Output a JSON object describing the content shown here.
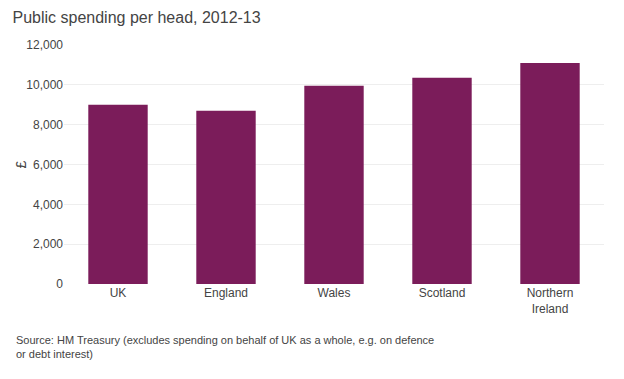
{
  "chart_data": {
    "type": "bar",
    "title": "Public spending per head, 2012-13",
    "ylabel": "£",
    "categories": [
      "UK",
      "England",
      "Wales",
      "Scotland",
      "Northern\nIreland"
    ],
    "values": [
      9000,
      8700,
      9950,
      10350,
      11100
    ],
    "color": "#7B1C5A",
    "ylim": [
      0,
      12000
    ],
    "yticks": [
      0,
      {
        "value": 2000,
        "label": "2,000"
      },
      {
        "value": 4000,
        "label": "4,000"
      },
      {
        "value": 6000,
        "label": "6,000"
      },
      {
        "value": 8000,
        "label": "8,000"
      },
      {
        "value": 10000,
        "label": "10,000"
      },
      {
        "value": 12000,
        "label": "12,000"
      }
    ],
    "grid": true,
    "annotations": [
      "Source: HM Treasury (excludes spending on behalf of UK as a whole, e.g. on defence\nor debt interest)"
    ]
  }
}
